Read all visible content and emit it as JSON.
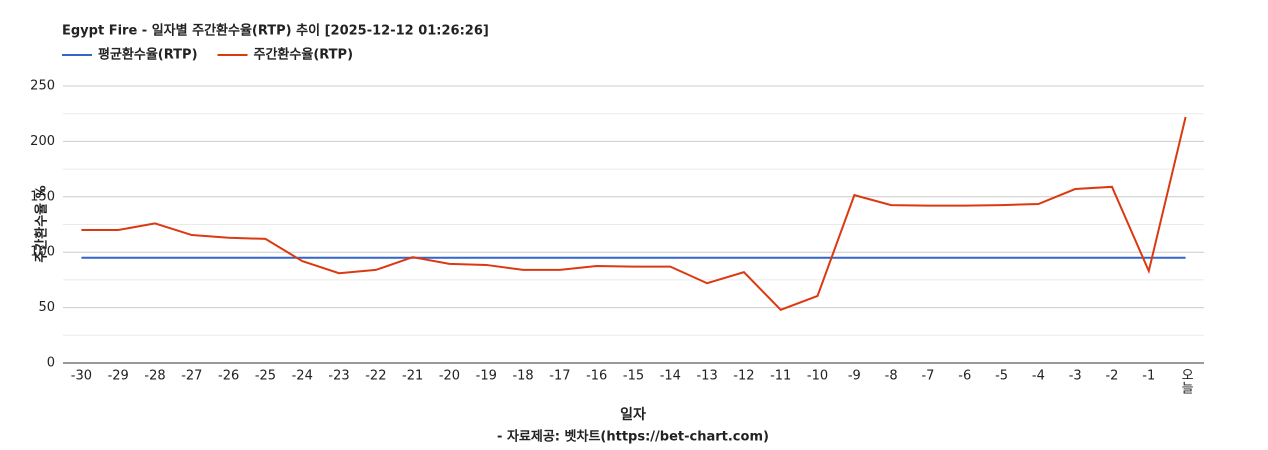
{
  "chart_data": {
    "type": "line",
    "title": "Egypt Fire - 일자별 주간환수율(RTP) 추이 [2025-12-12 01:26:26]",
    "y_label": "주간환수율 %",
    "x_label": "일자",
    "source": "- 자료제공: 벳차트(https://bet-chart.com)",
    "categories": [
      "-30",
      "-29",
      "-28",
      "-27",
      "-26",
      "-25",
      "-24",
      "-23",
      "-22",
      "-21",
      "-20",
      "-19",
      "-18",
      "-17",
      "-16",
      "-15",
      "-14",
      "-13",
      "-12",
      "-11",
      "-10",
      "-9",
      "-8",
      "-7",
      "-6",
      "-5",
      "-4",
      "-3",
      "-2",
      "-1",
      "오늘"
    ],
    "series": [
      {
        "name": "평균환수율(RTP)",
        "color": "#3366cc",
        "values": [
          95,
          95,
          95,
          95,
          95,
          95,
          95,
          95,
          95,
          95,
          95,
          95,
          95,
          95,
          95,
          95,
          95,
          95,
          95,
          95,
          95,
          95,
          95,
          95,
          95,
          95,
          95,
          95,
          95,
          95,
          95
        ]
      },
      {
        "name": "주간환수율(RTP)",
        "color": "#dc3912",
        "values": [
          120,
          120,
          126,
          115.5,
          113,
          112,
          92,
          81,
          84,
          95.5,
          89.5,
          88.5,
          84,
          84,
          87.5,
          87,
          87,
          72,
          82,
          48,
          60.5,
          151.5,
          142.5,
          142,
          142,
          142.5,
          143.5,
          157,
          159,
          83,
          222
        ]
      }
    ],
    "ylim": [
      0,
      250
    ],
    "yticks": [
      0,
      50,
      100,
      150,
      200,
      250
    ],
    "grid": true,
    "minor_grid": true,
    "legend": "top-left"
  }
}
